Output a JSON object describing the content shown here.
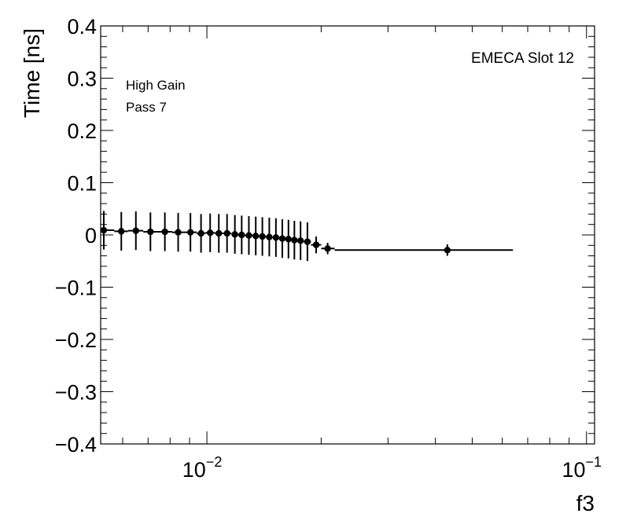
{
  "chart_data": {
    "type": "scatter",
    "xlabel": "f3",
    "ylabel": "Time [ns]",
    "x_scale": "log",
    "xlim": [
      0.00525,
      0.105
    ],
    "ylim": [
      -0.4,
      0.4
    ],
    "grid": false,
    "y_tick_values": [
      -0.4,
      -0.3,
      -0.2,
      -0.1,
      0,
      0.1,
      0.2,
      0.3,
      0.4
    ],
    "y_tick_labels": [
      "−0.4",
      "−0.3",
      "−0.2",
      "−0.1",
      "0",
      "0.1",
      "0.2",
      "0.3",
      "0.4"
    ],
    "x_major_ticks": [
      0.01,
      0.1
    ],
    "x_tick_labels": [
      {
        "value": 0.01,
        "base": "10",
        "exp": "−2"
      },
      {
        "value": 0.1,
        "base": "10",
        "exp": "−1"
      }
    ],
    "annotations": {
      "top_right": "EMECA Slot 12",
      "line1": "High Gain",
      "line2": "Pass 7"
    },
    "series": [
      {
        "points": [
          {
            "x": 0.00535,
            "y": 0.009,
            "xerr_lo": 0.00525,
            "xerr_hi": 0.0057,
            "yerr": 0.037
          },
          {
            "x": 0.00595,
            "y": 0.007,
            "xerr_lo": 0.0057,
            "xerr_hi": 0.0062,
            "yerr": 0.037
          },
          {
            "x": 0.0065,
            "y": 0.008,
            "xerr_lo": 0.0062,
            "xerr_hi": 0.0068,
            "yerr": 0.037
          },
          {
            "x": 0.0071,
            "y": 0.006,
            "xerr_lo": 0.0068,
            "xerr_hi": 0.0074,
            "yerr": 0.037
          },
          {
            "x": 0.00775,
            "y": 0.006,
            "xerr_lo": 0.0074,
            "xerr_hi": 0.0081,
            "yerr": 0.037
          },
          {
            "x": 0.0084,
            "y": 0.005,
            "xerr_lo": 0.0081,
            "xerr_hi": 0.0087,
            "yerr": 0.037
          },
          {
            "x": 0.00905,
            "y": 0.005,
            "xerr_lo": 0.0087,
            "xerr_hi": 0.0094,
            "yerr": 0.037
          },
          {
            "x": 0.00965,
            "y": 0.003,
            "xerr_lo": 0.0094,
            "xerr_hi": 0.0099,
            "yerr": 0.037
          },
          {
            "x": 0.0102,
            "y": 0.004,
            "xerr_lo": 0.0099,
            "xerr_hi": 0.0105,
            "yerr": 0.037
          },
          {
            "x": 0.01075,
            "y": 0.003,
            "xerr_lo": 0.0105,
            "xerr_hi": 0.011,
            "yerr": 0.037
          },
          {
            "x": 0.0113,
            "y": 0.003,
            "xerr_lo": 0.011,
            "xerr_hi": 0.0116,
            "yerr": 0.037
          },
          {
            "x": 0.01185,
            "y": 0.001,
            "xerr_lo": 0.0116,
            "xerr_hi": 0.0121,
            "yerr": 0.037
          },
          {
            "x": 0.01235,
            "y": 0.0,
            "xerr_lo": 0.0121,
            "xerr_hi": 0.0126,
            "yerr": 0.037
          },
          {
            "x": 0.0129,
            "y": -0.001,
            "xerr_lo": 0.0126,
            "xerr_hi": 0.0132,
            "yerr": 0.037
          },
          {
            "x": 0.01345,
            "y": -0.002,
            "xerr_lo": 0.0132,
            "xerr_hi": 0.0137,
            "yerr": 0.037
          },
          {
            "x": 0.014,
            "y": -0.003,
            "xerr_lo": 0.0137,
            "xerr_hi": 0.0143,
            "yerr": 0.037
          },
          {
            "x": 0.0146,
            "y": -0.004,
            "xerr_lo": 0.0143,
            "xerr_hi": 0.0149,
            "yerr": 0.037
          },
          {
            "x": 0.0152,
            "y": -0.005,
            "xerr_lo": 0.0149,
            "xerr_hi": 0.0155,
            "yerr": 0.037
          },
          {
            "x": 0.0158,
            "y": -0.007,
            "xerr_lo": 0.0155,
            "xerr_hi": 0.0161,
            "yerr": 0.037
          },
          {
            "x": 0.0164,
            "y": -0.008,
            "xerr_lo": 0.0161,
            "xerr_hi": 0.0167,
            "yerr": 0.037
          },
          {
            "x": 0.017,
            "y": -0.01,
            "xerr_lo": 0.0167,
            "xerr_hi": 0.0173,
            "yerr": 0.037
          },
          {
            "x": 0.01765,
            "y": -0.011,
            "xerr_lo": 0.0173,
            "xerr_hi": 0.018,
            "yerr": 0.037
          },
          {
            "x": 0.0184,
            "y": -0.013,
            "xerr_lo": 0.018,
            "xerr_hi": 0.0188,
            "yerr": 0.037
          },
          {
            "x": 0.0194,
            "y": -0.019,
            "xerr_lo": 0.0188,
            "xerr_hi": 0.02,
            "yerr": 0.016
          },
          {
            "x": 0.0208,
            "y": -0.026,
            "xerr_lo": 0.02,
            "xerr_hi": 0.0217,
            "yerr": 0.011
          },
          {
            "x": 0.043,
            "y": -0.029,
            "xerr_lo": 0.0217,
            "xerr_hi": 0.064,
            "yerr": 0.011
          }
        ]
      }
    ],
    "colors": {
      "marker": "#000000",
      "frame": "#000000"
    }
  }
}
